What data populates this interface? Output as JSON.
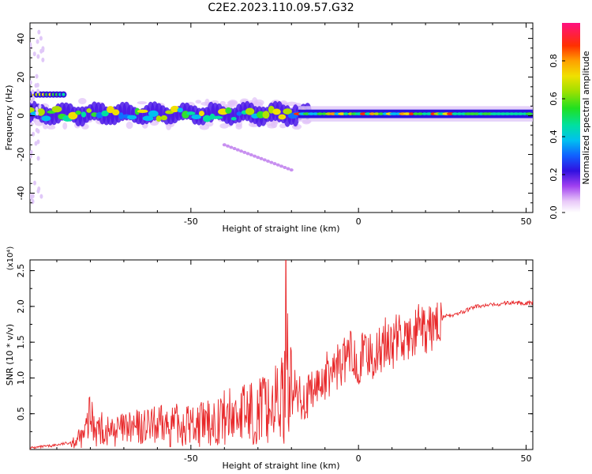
{
  "title": "C2E2.2023.110.09.57.G32",
  "chart_data": [
    {
      "type": "heatmap",
      "xlabel": "Height of straight line (km)",
      "ylabel": "Frequency (Hz)",
      "xlim": [
        -98,
        52
      ],
      "ylim": [
        -50,
        48
      ],
      "xticks": [
        -50,
        0,
        50
      ],
      "yticks": [
        -40,
        -20,
        0,
        20,
        40
      ],
      "colorbar": {
        "label": "Normalized spectral amplitude",
        "ticks": [
          "0.0",
          "0.2",
          "0.4",
          "0.6",
          "0.8"
        ],
        "range": [
          0,
          1
        ]
      },
      "ridge": {
        "center_frequency_hz": 1,
        "extent_km": [
          -98,
          52
        ],
        "upper_branch": {
          "x": [
            -98,
            -88
          ],
          "y": [
            11,
            11
          ]
        },
        "faint_branch": {
          "x": [
            -40,
            -20
          ],
          "y": [
            -15,
            -28
          ]
        }
      }
    },
    {
      "type": "line",
      "xlabel": "Height of straight line (km)",
      "ylabel": "SNR (10 * v/v)",
      "scale_label": "(x10⁴)",
      "xlim": [
        -98,
        52
      ],
      "ylim": [
        0,
        2.65
      ],
      "xticks": [
        -50,
        0,
        50
      ],
      "yticks": [
        "0.5",
        "1.0",
        "1.5",
        "2.0",
        "2.5"
      ],
      "series": [
        {
          "color": "#e8282a",
          "x": [
            -98,
            -92,
            -88,
            -86,
            -82,
            -80,
            -78,
            -75,
            -70,
            -65,
            -60,
            -55,
            -50,
            -45,
            -40,
            -35,
            -30,
            -25,
            -22,
            -21.5,
            -21,
            -20,
            -18,
            -15,
            -12,
            -10,
            -8,
            -5,
            -2,
            0,
            3,
            5,
            8,
            10,
            12,
            15,
            18,
            20,
            25,
            30,
            35,
            40,
            45,
            50,
            52
          ],
          "values": [
            0.02,
            0.05,
            0.08,
            0.1,
            0.18,
            0.45,
            0.3,
            0.25,
            0.28,
            0.3,
            0.32,
            0.34,
            0.35,
            0.36,
            0.45,
            0.5,
            0.55,
            0.62,
            0.75,
            2.65,
            1.2,
            0.8,
            0.75,
            0.7,
            0.9,
            1.0,
            1.1,
            1.2,
            1.35,
            1.25,
            1.35,
            1.3,
            1.5,
            1.45,
            1.6,
            1.5,
            1.7,
            1.6,
            1.85,
            1.9,
            2.0,
            2.02,
            2.05,
            2.05,
            2.05
          ]
        }
      ]
    }
  ]
}
